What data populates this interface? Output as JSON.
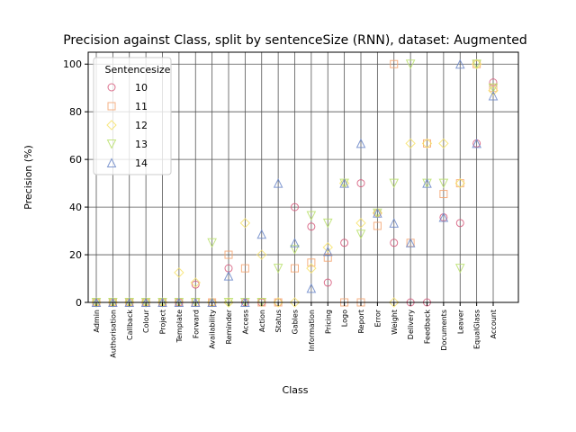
{
  "chart_data": {
    "type": "scatter",
    "title": "Precision against Class, split by sentenceSize (RNN), dataset: Augmented",
    "xlabel": "Class",
    "ylabel": "Precision (%)",
    "ylim": [
      0,
      105
    ],
    "yticks": [
      0,
      20,
      40,
      60,
      80,
      100
    ],
    "grid": true,
    "legend_title": "Sentencesize",
    "legend_position": "top-left",
    "categories": [
      "Admin",
      "Authorisation",
      "Callback",
      "Colour",
      "Project",
      "Template",
      "Forward",
      "Availability",
      "Reminder",
      "Access",
      "Action",
      "Status",
      "Gables",
      "Information",
      "Pricing",
      "Logo",
      "Report",
      "Error",
      "Weight",
      "Delivery",
      "Feedback",
      "Documents",
      "Leaver",
      "EqualGlass",
      "Account"
    ],
    "series": [
      {
        "name": "10",
        "marker": "circle",
        "color": "#d6587a",
        "values": [
          0,
          0,
          0,
          0,
          0,
          0,
          7.5,
          0,
          14.3,
          0,
          0,
          0,
          40,
          31.8,
          8.3,
          25,
          50,
          37.5,
          25,
          0,
          0,
          35.7,
          33.3,
          66.7,
          92.3
        ]
      },
      {
        "name": "11",
        "marker": "square",
        "color": "#f5a36e",
        "values": [
          0,
          0,
          0,
          0,
          0,
          0,
          0,
          0,
          20,
          14.3,
          0,
          0,
          14.3,
          16.7,
          18.8,
          0,
          0,
          32.1,
          100,
          25,
          66.7,
          45.5,
          50,
          100,
          90
        ]
      },
      {
        "name": "12",
        "marker": "diamond",
        "color": "#f7e36a",
        "values": [
          0,
          0,
          0,
          0,
          0,
          12.5,
          8.3,
          0,
          0,
          33.3,
          20,
          0,
          0,
          14.3,
          23.1,
          50,
          33.3,
          37.5,
          0,
          66.7,
          66.7,
          66.7,
          50,
          100,
          88.9
        ]
      },
      {
        "name": "13",
        "marker": "triangle-down",
        "color": "#b8e06a",
        "values": [
          0,
          0,
          0,
          0,
          0,
          0,
          0,
          25,
          0,
          0,
          0,
          14.3,
          22.2,
          36.4,
          33.3,
          50,
          28.6,
          37.5,
          50,
          100,
          50,
          50,
          14.3,
          100,
          90
        ]
      },
      {
        "name": "14",
        "marker": "triangle-up",
        "color": "#6a86c8",
        "values": [
          0,
          0,
          0,
          0,
          0,
          0,
          0,
          0,
          11.1,
          0,
          28.6,
          50,
          25,
          5.9,
          21.4,
          50,
          66.7,
          37.5,
          33.3,
          25,
          50,
          35.7,
          100,
          66.7,
          86.7
        ]
      }
    ]
  }
}
